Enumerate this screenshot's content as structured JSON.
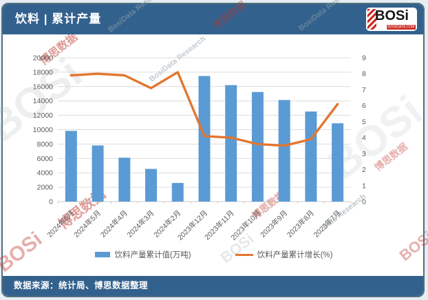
{
  "header": {
    "title": "饮料 | 累计产量",
    "logo": {
      "text": "BOSi",
      "domain": "BOSIDATA.COM"
    }
  },
  "footer": {
    "source": "数据来源：统计局、博思数据整理"
  },
  "watermarks": {
    "cn": "博思数据",
    "en": "BosiData Research",
    "en_short": "Data Research",
    "logo": "BOSi"
  },
  "colors": {
    "bar": "#5b9bd5",
    "line": "#e2762f",
    "header_bg": "#33618e",
    "grid": "#dcdcdc",
    "axis_line": "#c9c9c9",
    "axis_text": "#595959",
    "watermark_red": "#c03a30",
    "watermark_gray": "#8fa0a8"
  },
  "chart_data": {
    "type": "bar",
    "subtype": "bar+line combo",
    "categories": [
      "2024年6月",
      "2024年5月",
      "2024年4月",
      "2024年3月",
      "2024年2月",
      "2023年12月",
      "2023年11月",
      "2023年10月",
      "2023年9月",
      "2023年8月",
      "2023年7月"
    ],
    "series": [
      {
        "name": "饮料产量累计值(万吨)",
        "type": "bar",
        "axis": "left",
        "values": [
          9830,
          7810,
          6110,
          4550,
          2590,
          17470,
          16200,
          15240,
          14130,
          12530,
          10890
        ]
      },
      {
        "name": "饮料产量累计增长(%)",
        "type": "line",
        "axis": "right",
        "values": [
          7.9,
          8.0,
          7.9,
          7.1,
          8.1,
          4.1,
          4.0,
          3.6,
          3.5,
          3.9,
          6.1
        ]
      }
    ],
    "left_axis": {
      "min": 0,
      "max": 20000,
      "step": 2000
    },
    "right_axis": {
      "min": 0,
      "max": 9,
      "step": 1
    },
    "grid": true,
    "legend_position": "bottom"
  }
}
